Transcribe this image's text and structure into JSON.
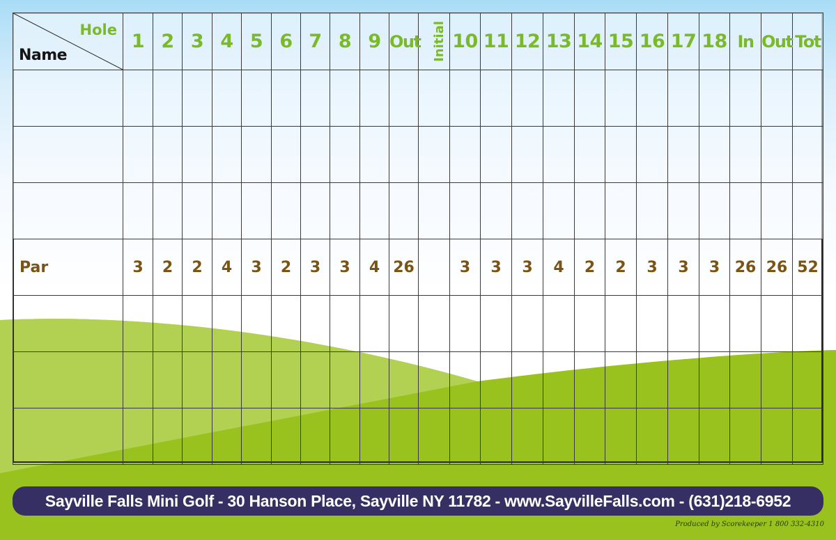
{
  "scorecard": {
    "corner": {
      "hole_label": "Hole",
      "name_label": "Name"
    },
    "columns": [
      "1",
      "2",
      "3",
      "4",
      "5",
      "6",
      "7",
      "8",
      "9",
      "Out",
      "Initial",
      "10",
      "11",
      "12",
      "13",
      "14",
      "15",
      "16",
      "17",
      "18",
      "In",
      "Out",
      "Tot"
    ],
    "player_rows": 3,
    "extra_rows": 3,
    "par": {
      "label": "Par",
      "values": [
        "3",
        "2",
        "2",
        "4",
        "3",
        "2",
        "3",
        "3",
        "4",
        "26",
        "",
        "3",
        "3",
        "3",
        "4",
        "2",
        "2",
        "3",
        "3",
        "3",
        "26",
        "26",
        "52"
      ]
    }
  },
  "footer": {
    "info": "Sayville Falls Mini Golf - 30 Hanson Place, Sayville NY 11782 - www.SayvilleFalls.com - (631)218-6952",
    "producer": "Produced by Scorekeeper 1 800 332-4310"
  },
  "colors": {
    "header_green": "#7ab929",
    "par_brown": "#7a5414",
    "footer_navy": "#352f63",
    "grass_green": "#9ac21f"
  }
}
